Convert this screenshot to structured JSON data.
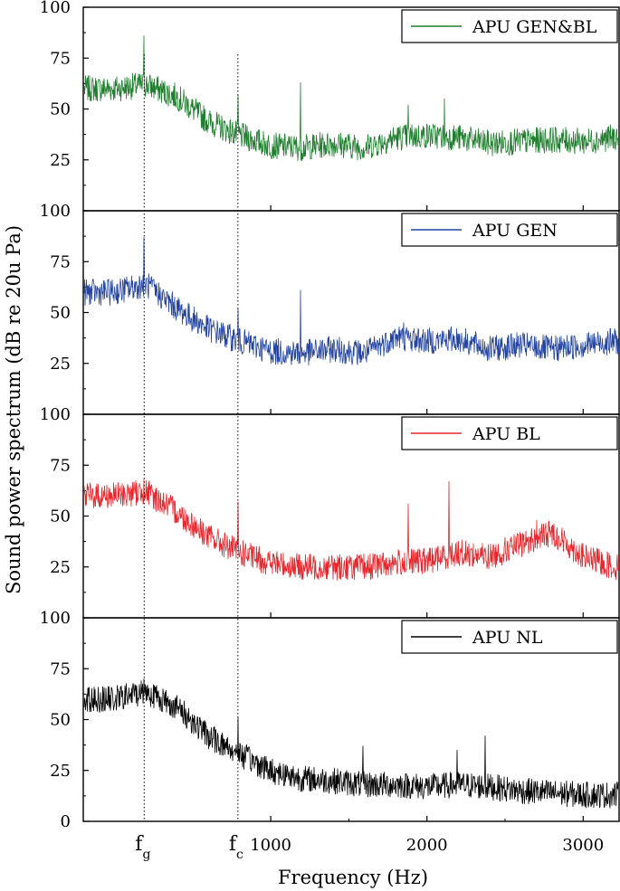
{
  "chart_data": [
    {
      "type": "line",
      "legend": "APU GEN&BL",
      "legend_placement": "top-right",
      "color": "#1f7f2e",
      "ylim": [
        0,
        100
      ],
      "yticks": [
        "100",
        "75",
        "50",
        "25"
      ],
      "xlim": [
        -200,
        3230
      ],
      "series": [
        {
          "name": "APU GEN&BL",
          "x": [
            0,
            200,
            400,
            600,
            800,
            1000,
            1200,
            1400,
            1600,
            1800,
            2000,
            2200,
            2400,
            2600,
            2800,
            3000,
            3200
          ],
          "y": [
            60,
            62,
            56,
            44,
            37,
            32,
            31,
            33,
            31,
            36,
            37,
            36,
            33,
            34,
            35,
            34,
            36
          ]
        }
      ],
      "peaks": [
        {
          "x": 190,
          "y": 86
        },
        {
          "x": 790,
          "y": 57
        },
        {
          "x": 1190,
          "y": 63
        },
        {
          "x": 1880,
          "y": 52
        },
        {
          "x": 2110,
          "y": 55
        }
      ]
    },
    {
      "type": "line",
      "legend": "APU GEN",
      "legend_placement": "top-right",
      "color": "#2545a0",
      "ylim": [
        0,
        100
      ],
      "yticks": [
        "100",
        "75",
        "50",
        "25"
      ],
      "xlim": [
        -200,
        3230
      ],
      "series": [
        {
          "name": "APU GEN",
          "x": [
            0,
            200,
            400,
            600,
            800,
            1000,
            1200,
            1400,
            1600,
            1800,
            2000,
            2200,
            2400,
            2600,
            2800,
            3000,
            3200
          ],
          "y": [
            60,
            64,
            52,
            42,
            36,
            31,
            30,
            32,
            30,
            38,
            36,
            37,
            32,
            34,
            32,
            34,
            36
          ]
        }
      ],
      "peaks": [
        {
          "x": 190,
          "y": 87
        },
        {
          "x": 790,
          "y": 52
        },
        {
          "x": 1190,
          "y": 61
        },
        {
          "x": 1850,
          "y": 45
        }
      ]
    },
    {
      "type": "line",
      "legend": "APU BL",
      "legend_placement": "top-right",
      "color": "#e8262c",
      "ylim": [
        0,
        100
      ],
      "yticks": [
        "100",
        "75",
        "50",
        "25"
      ],
      "xlim": [
        -200,
        3230
      ],
      "series": [
        {
          "name": "APU BL",
          "x": [
            0,
            200,
            400,
            600,
            800,
            1000,
            1200,
            1400,
            1600,
            1800,
            2000,
            2200,
            2400,
            2600,
            2800,
            3000,
            3200
          ],
          "y": [
            60,
            62,
            52,
            40,
            32,
            27,
            25,
            25,
            25,
            27,
            28,
            32,
            30,
            36,
            42,
            30,
            25
          ]
        }
      ],
      "peaks": [
        {
          "x": 190,
          "y": 68
        },
        {
          "x": 790,
          "y": 57
        },
        {
          "x": 1880,
          "y": 56
        },
        {
          "x": 2140,
          "y": 67
        },
        {
          "x": 2700,
          "y": 48
        }
      ]
    },
    {
      "type": "line",
      "legend": "APU NL",
      "legend_placement": "top-right",
      "color": "#000000",
      "ylim": [
        0,
        100
      ],
      "yticks": [
        "100",
        "75",
        "50",
        "25",
        "0"
      ],
      "xlim": [
        -200,
        3230
      ],
      "xticks": [
        "1000",
        "2000",
        "3000"
      ],
      "series": [
        {
          "name": "APU NL",
          "x": [
            0,
            200,
            400,
            600,
            800,
            1000,
            1200,
            1400,
            1600,
            1800,
            2000,
            2200,
            2400,
            2600,
            2800,
            3000,
            3200
          ],
          "y": [
            60,
            64,
            56,
            42,
            33,
            25,
            21,
            20,
            18,
            18,
            17,
            18,
            17,
            15,
            14,
            13,
            13
          ]
        }
      ],
      "peaks": [
        {
          "x": 190,
          "y": 70
        },
        {
          "x": 790,
          "y": 51
        },
        {
          "x": 1590,
          "y": 37
        },
        {
          "x": 2190,
          "y": 35
        },
        {
          "x": 2370,
          "y": 42
        }
      ]
    }
  ],
  "axes": {
    "ylabel": "Sound power spectrum  (dB re 20u Pa)",
    "xlabel": "Frequency  (Hz)"
  },
  "markers": [
    {
      "symbol": "f",
      "subscript": "g",
      "x": 190
    },
    {
      "symbol": "f",
      "subscript": "c",
      "x": 790
    }
  ]
}
